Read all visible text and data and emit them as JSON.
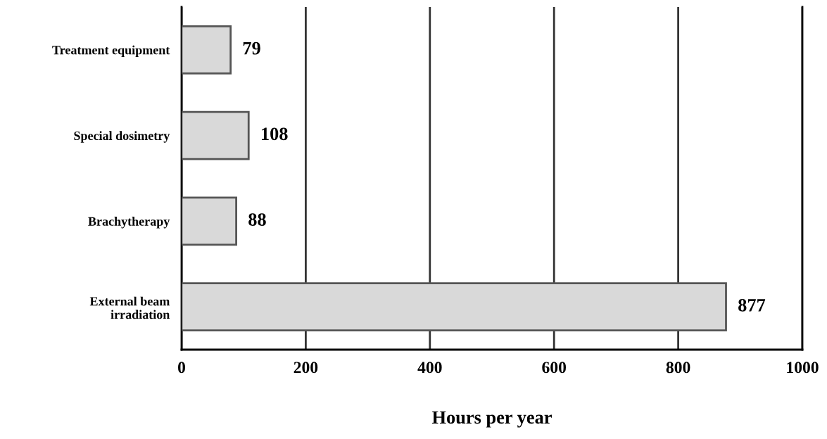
{
  "chart_data": {
    "type": "bar",
    "orientation": "horizontal",
    "xlabel": "Hours per year",
    "categories": [
      "Treatment equipment",
      "Special dosimetry",
      "Brachytherapy",
      "External beam\nirradiation"
    ],
    "values": [
      79,
      108,
      88,
      877
    ],
    "color": "#d9d9d9",
    "xlim": [
      0,
      1000
    ],
    "xticks": [
      0,
      200,
      400,
      600,
      800,
      1000
    ],
    "grid": "x",
    "data_labels": true
  }
}
